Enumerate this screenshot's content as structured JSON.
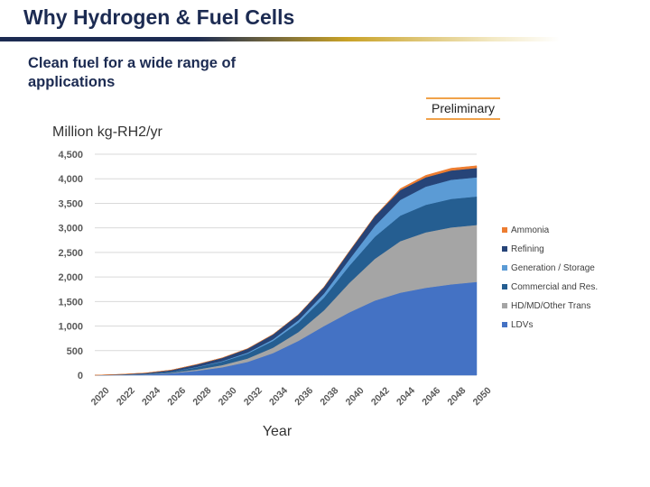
{
  "slide": {
    "title": "Why Hydrogen & Fuel Cells",
    "subtitle": "Clean fuel for a wide range of applications",
    "badge": "Preliminary"
  },
  "chart_data": {
    "type": "area",
    "stacked": true,
    "ylabel": "Million kg-RH2/yr",
    "xlabel": "Year",
    "ylim": [
      0,
      4500
    ],
    "yticks": [
      0,
      500,
      1000,
      1500,
      2000,
      2500,
      3000,
      3500,
      4000,
      4500
    ],
    "ytick_labels": [
      "0",
      "500",
      "1,000",
      "1,500",
      "2,000",
      "2,500",
      "3,000",
      "3,500",
      "4,000",
      "4,500"
    ],
    "x": [
      2020,
      2022,
      2024,
      2026,
      2028,
      2030,
      2032,
      2034,
      2036,
      2038,
      2040,
      2042,
      2044,
      2046,
      2048,
      2050
    ],
    "xtick_labels": [
      "2020",
      "2022",
      "2024",
      "2026",
      "2028",
      "2030",
      "2032",
      "2034",
      "2036",
      "2038",
      "2040",
      "2042",
      "2044",
      "2046",
      "2048",
      "2050"
    ],
    "grid": true,
    "legend_position": "right",
    "series": [
      {
        "name": "LDVs",
        "color": "#4472c4",
        "values": [
          0,
          5,
          15,
          40,
          90,
          160,
          270,
          450,
          700,
          1000,
          1280,
          1520,
          1680,
          1780,
          1850,
          1900
        ]
      },
      {
        "name": "HD/MD/Other Trans",
        "color": "#a5a5a5",
        "values": [
          0,
          1,
          5,
          10,
          25,
          45,
          70,
          110,
          180,
          320,
          600,
          850,
          1050,
          1130,
          1160,
          1160
        ]
      },
      {
        "name": "Commercial and Res.",
        "color": "#255e91",
        "values": [
          0,
          2,
          8,
          20,
          45,
          70,
          100,
          140,
          190,
          260,
          350,
          450,
          520,
          560,
          580,
          580
        ]
      },
      {
        "name": "Generation / Storage",
        "color": "#5b9bd5",
        "values": [
          0,
          1,
          2,
          4,
          8,
          12,
          20,
          30,
          50,
          80,
          130,
          220,
          320,
          370,
          390,
          390
        ]
      },
      {
        "name": "Refining",
        "color": "#264478",
        "values": [
          0,
          8,
          15,
          30,
          50,
          65,
          80,
          100,
          115,
          135,
          165,
          200,
          200,
          190,
          190,
          190
        ]
      },
      {
        "name": "Ammonia",
        "color": "#ed7d31",
        "values": [
          0,
          0,
          0,
          0,
          0,
          0,
          0,
          0,
          0,
          0,
          0,
          0,
          30,
          40,
          45,
          45
        ]
      }
    ]
  }
}
